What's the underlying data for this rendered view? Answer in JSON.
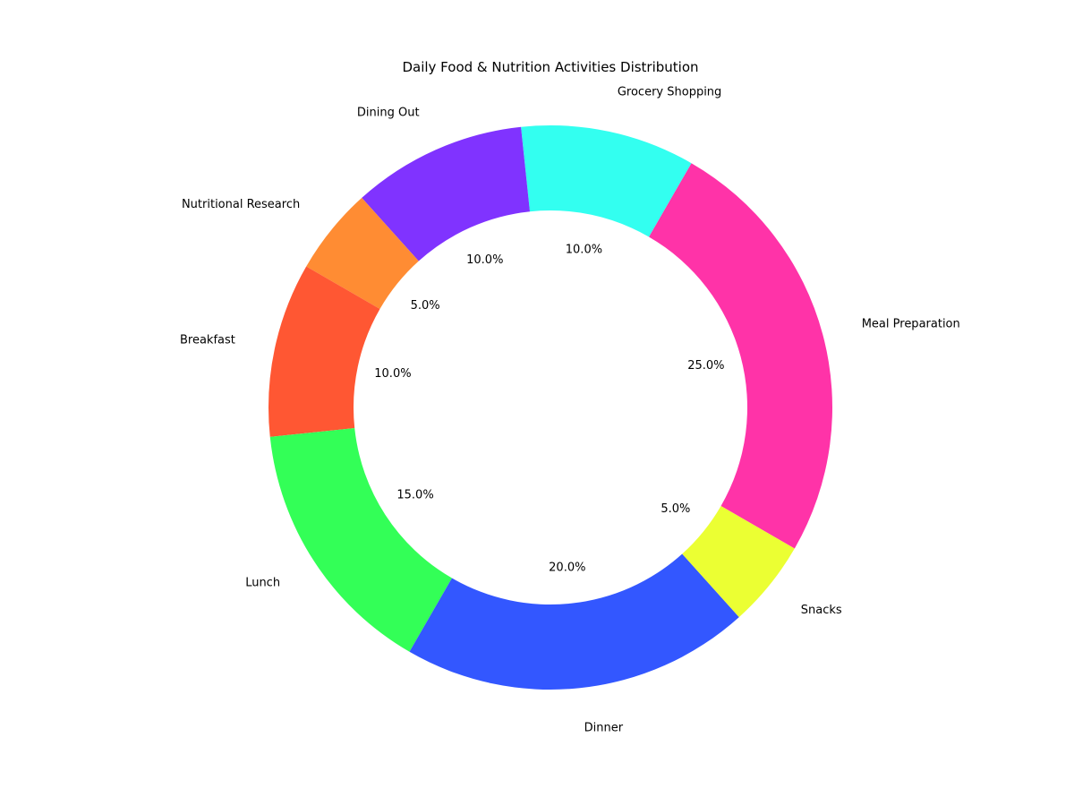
{
  "chart_data": {
    "type": "pie",
    "style": "donut",
    "title": "Daily Food & Nutrition Activities Distribution",
    "categories": [
      "Meal Preparation",
      "Grocery Shopping",
      "Dining Out",
      "Nutritional Research",
      "Breakfast",
      "Lunch",
      "Dinner",
      "Snacks"
    ],
    "values": [
      25,
      10,
      10,
      5,
      10,
      15,
      20,
      5
    ],
    "percent_labels": [
      "25.0%",
      "10.0%",
      "10.0%",
      "5.0%",
      "10.0%",
      "15.0%",
      "20.0%",
      "5.0%"
    ],
    "colors": [
      "#FF33A8",
      "#33FFF0",
      "#8033FF",
      "#FF8C33",
      "#FF5733",
      "#33FF57",
      "#3357FF",
      "#EBFF33"
    ],
    "start_angle_deg": -30,
    "direction": "counterclockwise",
    "legend": "none"
  }
}
